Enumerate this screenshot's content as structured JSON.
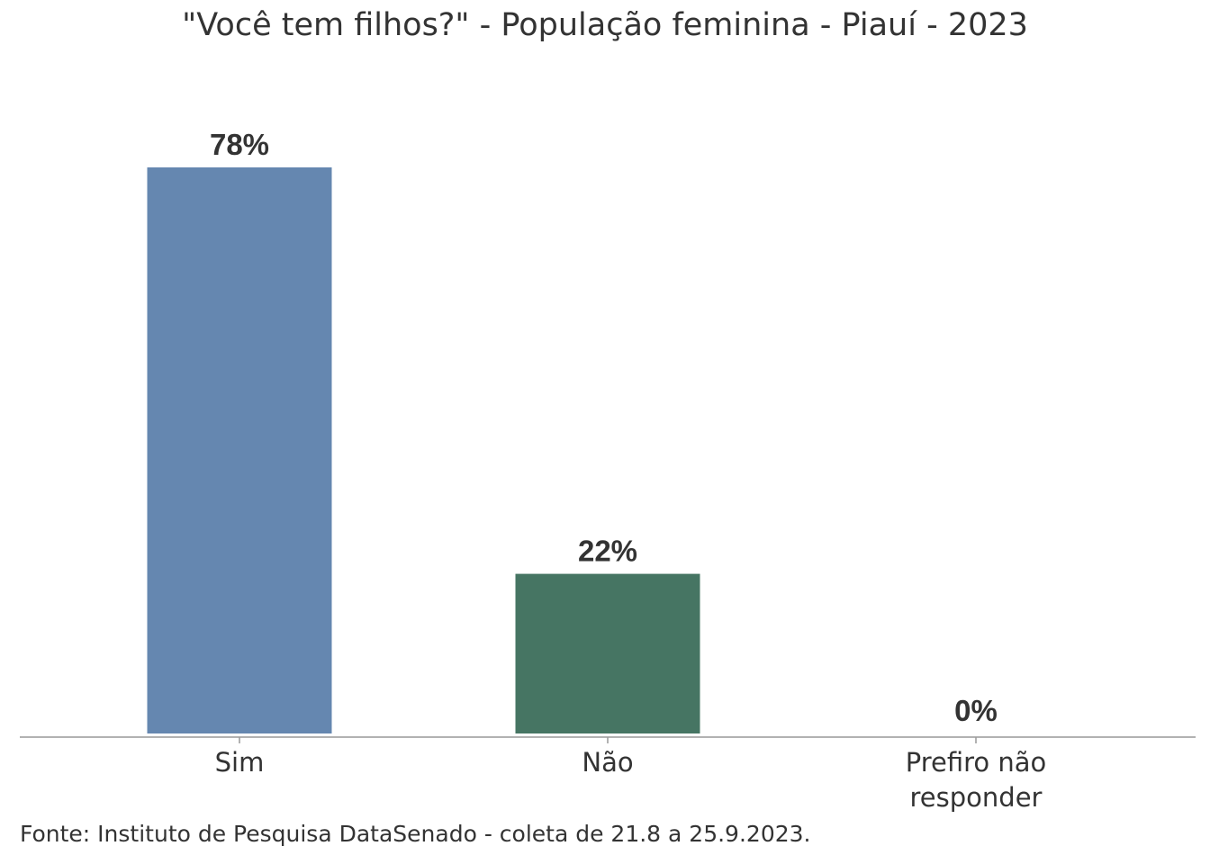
{
  "chart_data": {
    "type": "bar",
    "title": "\"Você tem filhos?\" - População feminina - Piauí - 2023",
    "categories": [
      "Sim",
      "Não",
      "Prefiro não responder"
    ],
    "category_lines": [
      [
        "Sim"
      ],
      [
        "Não"
      ],
      [
        "Prefiro não",
        "responder"
      ]
    ],
    "values": [
      78,
      22,
      0
    ],
    "data_labels": [
      "78%",
      "22%",
      "0%"
    ],
    "colors": [
      "#6587b0",
      "#467563",
      "#6587b0"
    ],
    "xlabel": "",
    "ylabel": "",
    "ylim": [
      0,
      100
    ],
    "grid": false,
    "source": "Fonte: Instituto de Pesquisa DataSenado - coleta de 21.8 a 25.9.2023."
  }
}
